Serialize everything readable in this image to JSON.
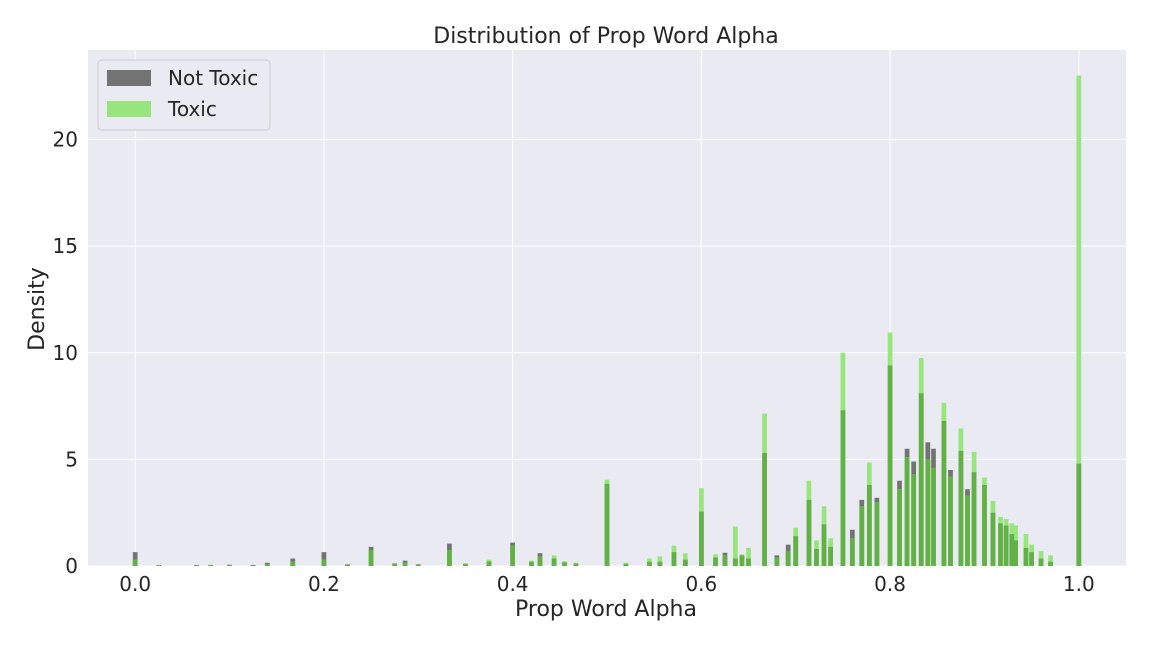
{
  "chart_data": {
    "type": "histogram",
    "title": "Distribution of Prop Word Alpha",
    "xlabel": "Prop Word Alpha",
    "ylabel": "Density",
    "xlim": [
      -0.05,
      1.05
    ],
    "ylim": [
      0,
      24.2
    ],
    "xticks": [
      "0.0",
      "0.2",
      "0.4",
      "0.6",
      "0.8",
      "1.0"
    ],
    "yticks": [
      "0",
      "5",
      "10",
      "15",
      "20"
    ],
    "grid": true,
    "legend_position": "top-left",
    "colors": {
      "background": "#eaeaf2",
      "grid": "#ffffff",
      "not_toxic": "#737373",
      "toxic": "#98e57e",
      "overlap": "#62b146"
    },
    "series": [
      {
        "name": "Not Toxic",
        "points": [
          [
            0.0,
            0.65
          ],
          [
            0.025,
            0.04
          ],
          [
            0.065,
            0.05
          ],
          [
            0.08,
            0.05
          ],
          [
            0.1,
            0.06
          ],
          [
            0.125,
            0.05
          ],
          [
            0.14,
            0.15
          ],
          [
            0.167,
            0.35
          ],
          [
            0.2,
            0.65
          ],
          [
            0.225,
            0.08
          ],
          [
            0.25,
            0.9
          ],
          [
            0.275,
            0.12
          ],
          [
            0.286,
            0.25
          ],
          [
            0.3,
            0.08
          ],
          [
            0.333,
            1.05
          ],
          [
            0.35,
            0.1
          ],
          [
            0.375,
            0.22
          ],
          [
            0.4,
            1.1
          ],
          [
            0.42,
            0.2
          ],
          [
            0.429,
            0.6
          ],
          [
            0.444,
            0.35
          ],
          [
            0.455,
            0.18
          ],
          [
            0.467,
            0.12
          ],
          [
            0.5,
            3.85
          ],
          [
            0.52,
            0.1
          ],
          [
            0.545,
            0.2
          ],
          [
            0.556,
            0.2
          ],
          [
            0.571,
            0.65
          ],
          [
            0.583,
            0.3
          ],
          [
            0.6,
            2.55
          ],
          [
            0.615,
            0.4
          ],
          [
            0.625,
            0.62
          ],
          [
            0.636,
            0.35
          ],
          [
            0.643,
            0.5
          ],
          [
            0.65,
            0.35
          ],
          [
            0.667,
            5.3
          ],
          [
            0.68,
            0.5
          ],
          [
            0.692,
            1.0
          ],
          [
            0.7,
            1.4
          ],
          [
            0.714,
            3.1
          ],
          [
            0.722,
            0.8
          ],
          [
            0.73,
            1.95
          ],
          [
            0.737,
            0.9
          ],
          [
            0.75,
            7.3
          ],
          [
            0.76,
            1.7
          ],
          [
            0.77,
            3.1
          ],
          [
            0.778,
            3.8
          ],
          [
            0.786,
            3.2
          ],
          [
            0.8,
            9.4
          ],
          [
            0.81,
            4.0
          ],
          [
            0.818,
            5.5
          ],
          [
            0.825,
            4.9
          ],
          [
            0.833,
            8.1
          ],
          [
            0.84,
            5.8
          ],
          [
            0.846,
            5.5
          ],
          [
            0.857,
            6.8
          ],
          [
            0.864,
            4.5
          ],
          [
            0.875,
            5.4
          ],
          [
            0.882,
            3.6
          ],
          [
            0.889,
            4.4
          ],
          [
            0.9,
            3.8
          ],
          [
            0.909,
            2.5
          ],
          [
            0.917,
            2.0
          ],
          [
            0.923,
            1.9
          ],
          [
            0.929,
            1.5
          ],
          [
            0.933,
            1.2
          ],
          [
            0.944,
            0.85
          ],
          [
            0.95,
            0.65
          ],
          [
            0.96,
            0.35
          ],
          [
            0.97,
            0.2
          ],
          [
            1.0,
            4.8
          ]
        ]
      },
      {
        "name": "Toxic",
        "points": [
          [
            0.0,
            0.3
          ],
          [
            0.025,
            0.02
          ],
          [
            0.065,
            0.03
          ],
          [
            0.08,
            0.03
          ],
          [
            0.1,
            0.03
          ],
          [
            0.125,
            0.02
          ],
          [
            0.14,
            0.08
          ],
          [
            0.167,
            0.2
          ],
          [
            0.2,
            0.3
          ],
          [
            0.225,
            0.06
          ],
          [
            0.25,
            0.75
          ],
          [
            0.275,
            0.08
          ],
          [
            0.286,
            0.15
          ],
          [
            0.3,
            0.05
          ],
          [
            0.333,
            0.75
          ],
          [
            0.35,
            0.12
          ],
          [
            0.375,
            0.3
          ],
          [
            0.4,
            0.95
          ],
          [
            0.42,
            0.25
          ],
          [
            0.429,
            0.45
          ],
          [
            0.444,
            0.5
          ],
          [
            0.455,
            0.22
          ],
          [
            0.467,
            0.15
          ],
          [
            0.5,
            4.05
          ],
          [
            0.52,
            0.15
          ],
          [
            0.545,
            0.35
          ],
          [
            0.556,
            0.45
          ],
          [
            0.571,
            0.95
          ],
          [
            0.583,
            0.6
          ],
          [
            0.6,
            3.65
          ],
          [
            0.615,
            0.55
          ],
          [
            0.625,
            0.5
          ],
          [
            0.636,
            1.85
          ],
          [
            0.643,
            0.55
          ],
          [
            0.65,
            0.85
          ],
          [
            0.667,
            7.15
          ],
          [
            0.68,
            0.4
          ],
          [
            0.692,
            0.7
          ],
          [
            0.7,
            1.8
          ],
          [
            0.714,
            4.0
          ],
          [
            0.722,
            1.2
          ],
          [
            0.73,
            2.8
          ],
          [
            0.737,
            1.3
          ],
          [
            0.75,
            10.0
          ],
          [
            0.76,
            1.3
          ],
          [
            0.77,
            2.8
          ],
          [
            0.778,
            4.85
          ],
          [
            0.786,
            3.0
          ],
          [
            0.8,
            10.95
          ],
          [
            0.81,
            3.6
          ],
          [
            0.818,
            5.1
          ],
          [
            0.825,
            4.3
          ],
          [
            0.833,
            9.75
          ],
          [
            0.84,
            5.0
          ],
          [
            0.846,
            4.6
          ],
          [
            0.857,
            7.65
          ],
          [
            0.864,
            4.2
          ],
          [
            0.875,
            6.45
          ],
          [
            0.882,
            3.3
          ],
          [
            0.889,
            5.35
          ],
          [
            0.9,
            4.15
          ],
          [
            0.909,
            3.05
          ],
          [
            0.917,
            2.3
          ],
          [
            0.923,
            2.2
          ],
          [
            0.929,
            2.0
          ],
          [
            0.933,
            1.9
          ],
          [
            0.944,
            1.5
          ],
          [
            0.95,
            1.0
          ],
          [
            0.96,
            0.7
          ],
          [
            0.97,
            0.5
          ],
          [
            1.0,
            23.0
          ]
        ]
      }
    ]
  }
}
